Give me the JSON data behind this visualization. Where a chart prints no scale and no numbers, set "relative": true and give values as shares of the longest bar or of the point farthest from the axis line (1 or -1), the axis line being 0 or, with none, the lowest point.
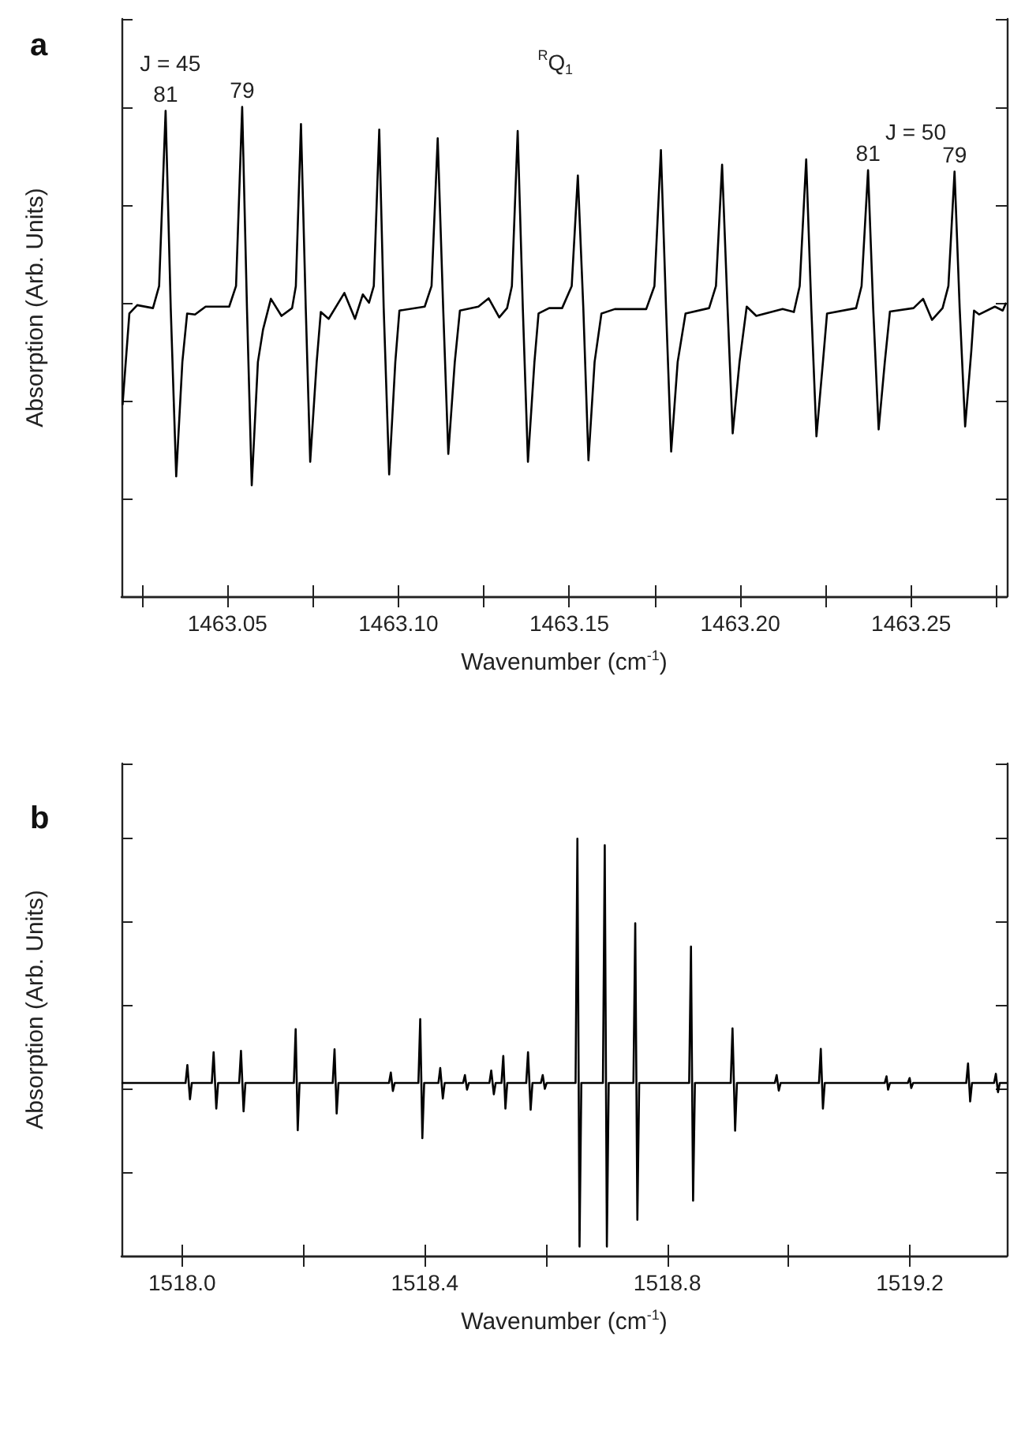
{
  "chart_data": [
    {
      "type": "line",
      "title": "a",
      "xlabel": "Wavenumber (cm$^{-1}$)",
      "ylabel": "Absorption (Arb. Units)",
      "relative": true,
      "grid": false,
      "marker": "none",
      "line_style": "solid",
      "tick_labels": "x",
      "color": "#000000",
      "xlim": [
        1463.019,
        1463.278
      ],
      "xticks": [
        {
          "value": 1463.025,
          "label": null
        },
        {
          "value": 1463.05,
          "label": "1463.05"
        },
        {
          "value": 1463.075,
          "label": null
        },
        {
          "value": 1463.1,
          "label": "1463.10"
        },
        {
          "value": 1463.125,
          "label": null
        },
        {
          "value": 1463.15,
          "label": "1463.15"
        },
        {
          "value": 1463.175,
          "label": null
        },
        {
          "value": 1463.2,
          "label": "1463.20"
        },
        {
          "value": 1463.225,
          "label": null
        },
        {
          "value": 1463.25,
          "label": "1463.25"
        },
        {
          "value": 1463.275,
          "label": null
        }
      ],
      "annotations": [
        "$^{R}$Q$_{1}$",
        "J = 45",
        {
          "text": "81",
          "x": 1463.0319,
          "y": 0.992
        },
        {
          "text": "79",
          "x": 1463.0543,
          "y": 1.0
        },
        "J = 50",
        {
          "text": "81",
          "x": 1463.2374,
          "y": 0.871
        },
        {
          "text": "79",
          "x": 1463.2627,
          "y": 0.868
        }
      ],
      "x": [
        1463.0193,
        1463.0213,
        1463.0236,
        1463.0282,
        1463.03,
        1463.0319,
        1463.0334,
        1463.035,
        1463.0368,
        1463.0382,
        1463.0405,
        1463.0436,
        1463.0505,
        1463.0525,
        1463.0543,
        1463.0557,
        1463.0571,
        1463.0589,
        1463.0604,
        1463.0627,
        1463.0658,
        1463.0689,
        1463.07,
        1463.0715,
        1463.0729,
        1463.0742,
        1463.0761,
        1463.0773,
        1463.0796,
        1463.0842,
        1463.0873,
        1463.0896,
        1463.0914,
        1463.0928,
        1463.0944,
        1463.0957,
        1463.0973,
        1463.0991,
        1463.1003,
        1463.1077,
        1463.1097,
        1463.1115,
        1463.1131,
        1463.1146,
        1463.1165,
        1463.118,
        1463.1234,
        1463.1264,
        1463.1295,
        1463.1318,
        1463.1332,
        1463.1349,
        1463.1364,
        1463.1379,
        1463.1398,
        1463.141,
        1463.1441,
        1463.1479,
        1463.1507,
        1463.1525,
        1463.1541,
        1463.1556,
        1463.1574,
        1463.1594,
        1463.1633,
        1463.1725,
        1463.1749,
        1463.1768,
        1463.1783,
        1463.1798,
        1463.1817,
        1463.184,
        1463.1909,
        1463.1929,
        1463.1947,
        1463.1963,
        1463.1978,
        1463.1998,
        1463.2019,
        1463.2047,
        1463.2124,
        1463.2157,
        1463.2174,
        1463.2193,
        1463.2208,
        1463.2223,
        1463.2242,
        1463.2254,
        1463.2339,
        1463.2355,
        1463.2374,
        1463.2389,
        1463.2405,
        1463.2423,
        1463.2438,
        1463.2507,
        1463.2535,
        1463.2561,
        1463.2592,
        1463.2609,
        1463.2627,
        1463.2642,
        1463.2658,
        1463.2676,
        1463.2684,
        1463.2699,
        1463.2745,
        1463.2768,
        1463.2778
      ],
      "values": [
        0.391,
        0.578,
        0.595,
        0.589,
        0.634,
        0.992,
        0.589,
        0.245,
        0.479,
        0.578,
        0.576,
        0.592,
        0.592,
        0.634,
        1.0,
        0.589,
        0.227,
        0.479,
        0.545,
        0.608,
        0.573,
        0.589,
        0.634,
        0.965,
        0.589,
        0.275,
        0.479,
        0.581,
        0.567,
        0.62,
        0.567,
        0.617,
        0.6,
        0.634,
        0.954,
        0.589,
        0.249,
        0.479,
        0.584,
        0.592,
        0.634,
        0.936,
        0.589,
        0.291,
        0.479,
        0.584,
        0.592,
        0.609,
        0.57,
        0.589,
        0.634,
        0.951,
        0.589,
        0.275,
        0.479,
        0.578,
        0.589,
        0.589,
        0.634,
        0.86,
        0.589,
        0.278,
        0.479,
        0.578,
        0.587,
        0.587,
        0.634,
        0.912,
        0.589,
        0.296,
        0.479,
        0.578,
        0.589,
        0.634,
        0.882,
        0.589,
        0.333,
        0.479,
        0.592,
        0.573,
        0.587,
        0.581,
        0.634,
        0.893,
        0.589,
        0.327,
        0.479,
        0.578,
        0.589,
        0.634,
        0.871,
        0.589,
        0.341,
        0.479,
        0.582,
        0.589,
        0.608,
        0.565,
        0.589,
        0.634,
        0.868,
        0.589,
        0.347,
        0.501,
        0.584,
        0.576,
        0.592,
        0.584,
        0.6
      ]
    },
    {
      "type": "line",
      "title": "b",
      "xlabel": "Wavenumber (cm$^{-1}$)",
      "ylabel": "Absorption (Arb. Units)",
      "relative": true,
      "grid": false,
      "marker": "none",
      "line_style": "solid",
      "tick_labels": "x",
      "color": "#000000",
      "xlim": [
        1517.9,
        1519.36
      ],
      "xticks": [
        {
          "value": 1518.0,
          "label": "1518.0"
        },
        {
          "value": 1518.2,
          "label": null
        },
        {
          "value": 1518.4,
          "label": "1518.4"
        },
        {
          "value": 1518.6,
          "label": null
        },
        {
          "value": 1518.8,
          "label": "1518.8"
        },
        {
          "value": 1519.0,
          "label": null
        },
        {
          "value": 1519.2,
          "label": "1519.2"
        }
      ],
      "x": [
        1517.9,
        1518.0056,
        1518.0086,
        1518.0129,
        1518.0159,
        1518.0489,
        1518.0519,
        1518.0563,
        1518.0593,
        1518.094,
        1518.097,
        1518.1013,
        1518.1043,
        1518.1842,
        1518.1872,
        1518.1906,
        1518.1936,
        1518.2483,
        1518.2513,
        1518.2548,
        1518.2578,
        1518.3411,
        1518.3441,
        1518.3475,
        1518.3505,
        1518.3896,
        1518.3926,
        1518.3961,
        1518.3991,
        1518.4226,
        1518.4256,
        1518.4299,
        1518.4329,
        1518.4633,
        1518.4663,
        1518.4698,
        1518.4728,
        1518.5067,
        1518.5097,
        1518.514,
        1518.517,
        1518.5266,
        1518.5296,
        1518.5331,
        1518.5361,
        1518.5674,
        1518.5704,
        1518.5747,
        1518.5777,
        1518.5916,
        1518.5946,
        1518.5981,
        1518.6011,
        1518.6488,
        1518.6518,
        1518.6553,
        1518.6583,
        1518.6939,
        1518.6969,
        1518.7004,
        1518.7034,
        1518.7442,
        1518.7472,
        1518.7507,
        1518.7537,
        1518.8361,
        1518.8391,
        1518.8426,
        1518.8456,
        1518.9046,
        1518.9076,
        1518.9119,
        1518.9149,
        1518.9774,
        1518.9804,
        1518.9839,
        1518.9869,
        1519.0502,
        1519.0532,
        1519.0567,
        1519.0597,
        1519.1586,
        1519.1616,
        1519.1642,
        1519.1672,
        1519.1967,
        1519.1997,
        1519.2024,
        1519.2054,
        1519.293,
        1519.296,
        1519.2995,
        1519.3025,
        1519.3389,
        1519.3419,
        1519.3454,
        1519.3484,
        1519.36
      ],
      "values": [
        0.414,
        0.414,
        0.457,
        0.375,
        0.414,
        0.414,
        0.488,
        0.353,
        0.414,
        0.414,
        0.491,
        0.346,
        0.414,
        0.414,
        0.543,
        0.301,
        0.414,
        0.414,
        0.495,
        0.341,
        0.414,
        0.414,
        0.439,
        0.395,
        0.414,
        0.414,
        0.567,
        0.282,
        0.414,
        0.414,
        0.45,
        0.377,
        0.414,
        0.414,
        0.433,
        0.398,
        0.414,
        0.414,
        0.444,
        0.387,
        0.414,
        0.414,
        0.479,
        0.353,
        0.414,
        0.414,
        0.488,
        0.35,
        0.414,
        0.414,
        0.433,
        0.4,
        0.414,
        0.414,
        1.0,
        0.022,
        0.414,
        0.414,
        0.984,
        0.022,
        0.414,
        0.414,
        0.797,
        0.086,
        0.414,
        0.414,
        0.741,
        0.132,
        0.414,
        0.414,
        0.545,
        0.3,
        0.414,
        0.414,
        0.433,
        0.396,
        0.414,
        0.414,
        0.496,
        0.353,
        0.414,
        0.414,
        0.43,
        0.398,
        0.414,
        0.414,
        0.426,
        0.402,
        0.414,
        0.414,
        0.461,
        0.37,
        0.414,
        0.414,
        0.436,
        0.392,
        0.414,
        0.414
      ]
    }
  ]
}
